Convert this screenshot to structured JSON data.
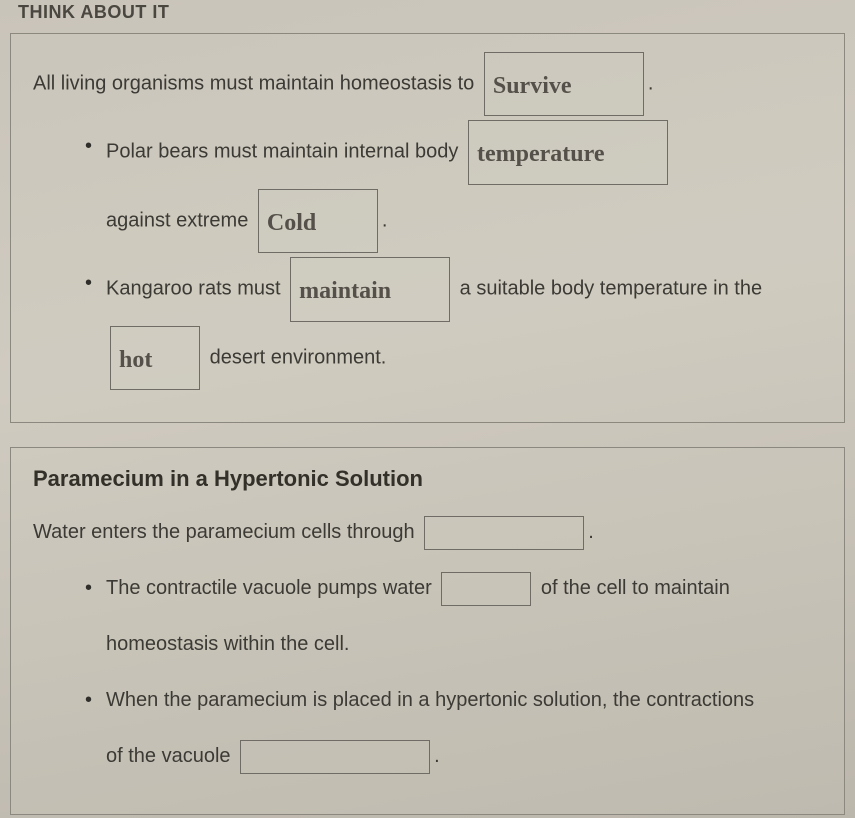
{
  "header_fragment": "THINK ABOUT IT",
  "section1": {
    "intro_before": "All living organisms must maintain homeostasis to",
    "intro_blank": "Survive",
    "intro_after": ".",
    "bullets": [
      {
        "t1": "Polar bears must maintain internal body",
        "b1": "temperature",
        "t2": "against extreme",
        "b2": "Cold",
        "t3": "."
      },
      {
        "t1": "Kangaroo rats must",
        "b1": "maintain",
        "t2": "a suitable body temperature in the",
        "b2": "hot",
        "t3": "desert environment."
      }
    ]
  },
  "section2": {
    "title": "Paramecium in a Hypertonic Solution",
    "intro_before": "Water enters the paramecium cells through",
    "intro_blank": "",
    "intro_after": ".",
    "bullets": [
      {
        "t1": "The contractile vacuole pumps water",
        "b1": "",
        "t2": "of the cell to maintain",
        "t3": "homeostasis within the cell."
      },
      {
        "t1": "When the paramecium is placed in a hypertonic solution, the contractions",
        "t2": "of the vacuole",
        "b1": "",
        "t3": "."
      }
    ]
  },
  "colors": {
    "border": "#8b8880",
    "text": "#3c3a35",
    "handwriting": "#555049"
  }
}
